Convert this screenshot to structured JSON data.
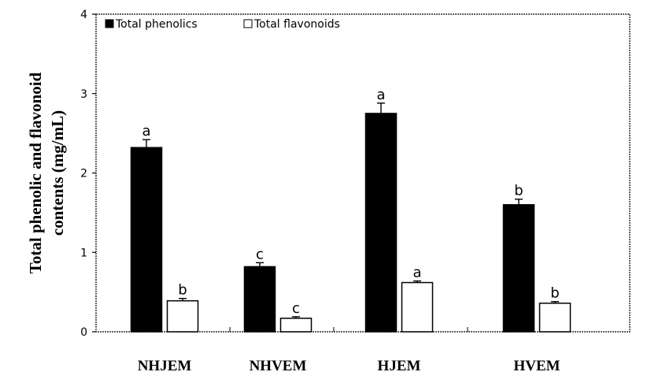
{
  "chart_data": {
    "type": "bar",
    "title": "",
    "xlabel": "",
    "ylabel_lines": [
      "Total phenolic and flavonoid",
      "contents (mg/mL)"
    ],
    "categories": [
      "NHJEM",
      "NHVEM",
      "HJEM",
      "HVEM"
    ],
    "series": [
      {
        "name": "Total phenolics",
        "fill": "#000000",
        "values": [
          2.32,
          0.82,
          2.75,
          1.6
        ],
        "errors": [
          0.1,
          0.05,
          0.13,
          0.07
        ],
        "significance": [
          "a",
          "c",
          "a",
          "b"
        ]
      },
      {
        "name": "Total flavonoids",
        "fill": "#ffffff",
        "values": [
          0.39,
          0.17,
          0.62,
          0.36
        ],
        "errors": [
          0.03,
          0.02,
          0.02,
          0.02
        ],
        "significance": [
          "b",
          "c",
          "a",
          "b"
        ]
      }
    ],
    "ylim": [
      0,
      4
    ],
    "yticks": [
      "0",
      "1",
      "2",
      "3",
      "4"
    ],
    "grid": false,
    "legend_position": "top-left"
  }
}
